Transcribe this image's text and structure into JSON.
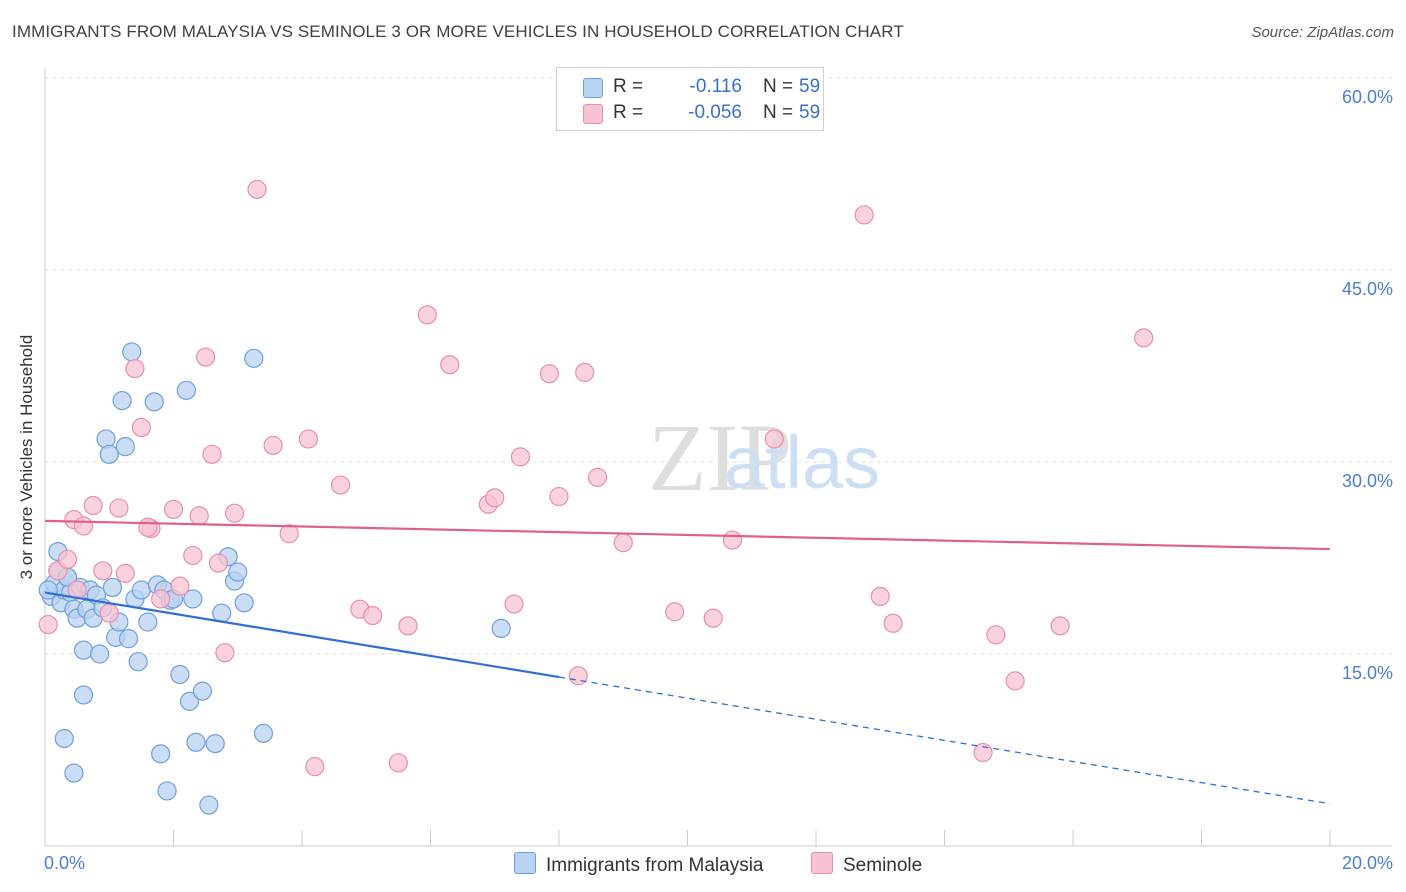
{
  "title": "IMMIGRANTS FROM MALAYSIA VS SEMINOLE 3 OR MORE VEHICLES IN HOUSEHOLD CORRELATION CHART",
  "source": "Source: ZipAtlas.com",
  "watermark": {
    "zip": "ZIP",
    "atlas": "atlas"
  },
  "legend": {
    "rows": [
      {
        "r_label": "R =",
        "r_value": "-0.116",
        "n_label": "N =",
        "n_value": "59"
      },
      {
        "r_label": "R =",
        "r_value": "-0.056",
        "n_label": "N =",
        "n_value": "59"
      }
    ]
  },
  "bottom_legend": {
    "series1": "Immigrants from Malaysia",
    "series2": "Seminole"
  },
  "colors": {
    "blue_fill": "#b8d2f2",
    "blue_stroke": "#6f9fdc",
    "blue_line": "#2f6fd4",
    "pink_fill": "#f7c3d3",
    "pink_stroke": "#e88fab",
    "pink_line": "#e0608a",
    "tick": "#4a7fd4",
    "grid": "#dddddd"
  },
  "chart_data": {
    "type": "scatter",
    "ylabel": "3 or more Vehicles in Household",
    "xlim": [
      0,
      20
    ],
    "ylim": [
      0,
      60
    ],
    "x_tick_labels": [
      "0.0%",
      "20.0%"
    ],
    "y_ticks": [
      15,
      30,
      45,
      60
    ],
    "y_tick_labels": [
      "15.0%",
      "30.0%",
      "45.0%",
      "60.0%"
    ],
    "grid": true,
    "series": [
      {
        "name": "Immigrants from Malaysia",
        "points": [
          [
            0.1,
            19.5
          ],
          [
            0.15,
            20.5
          ],
          [
            0.2,
            21.5
          ],
          [
            0.25,
            19.0
          ],
          [
            0.3,
            20.0
          ],
          [
            0.35,
            21.0
          ],
          [
            0.4,
            19.8
          ],
          [
            0.45,
            18.5
          ],
          [
            0.5,
            17.8
          ],
          [
            0.55,
            20.2
          ],
          [
            0.6,
            15.3
          ],
          [
            0.65,
            18.5
          ],
          [
            0.7,
            20.0
          ],
          [
            0.75,
            17.8
          ],
          [
            0.8,
            19.6
          ],
          [
            0.85,
            15.0
          ],
          [
            0.9,
            18.6
          ],
          [
            0.95,
            31.8
          ],
          [
            1.0,
            30.6
          ],
          [
            1.05,
            20.2
          ],
          [
            1.1,
            16.3
          ],
          [
            1.15,
            17.5
          ],
          [
            1.2,
            34.8
          ],
          [
            1.25,
            31.2
          ],
          [
            1.3,
            16.2
          ],
          [
            1.35,
            38.6
          ],
          [
            1.4,
            19.3
          ],
          [
            1.45,
            14.4
          ],
          [
            1.5,
            20.0
          ],
          [
            1.6,
            17.5
          ],
          [
            1.7,
            34.7
          ],
          [
            1.75,
            20.4
          ],
          [
            1.8,
            7.2
          ],
          [
            1.85,
            20.0
          ],
          [
            1.9,
            4.3
          ],
          [
            1.95,
            19.2
          ],
          [
            2.0,
            19.3
          ],
          [
            2.1,
            13.4
          ],
          [
            2.2,
            35.6
          ],
          [
            2.25,
            11.3
          ],
          [
            2.3,
            19.3
          ],
          [
            2.35,
            8.1
          ],
          [
            2.45,
            12.1
          ],
          [
            2.55,
            3.2
          ],
          [
            2.65,
            8.0
          ],
          [
            2.75,
            18.2
          ],
          [
            2.85,
            22.6
          ],
          [
            2.95,
            20.7
          ],
          [
            3.0,
            21.4
          ],
          [
            3.1,
            19.0
          ],
          [
            3.25,
            38.1
          ],
          [
            3.4,
            8.8
          ],
          [
            0.2,
            23.0
          ],
          [
            0.3,
            8.4
          ],
          [
            0.45,
            5.7
          ],
          [
            0.6,
            11.8
          ],
          [
            7.1,
            17.0
          ],
          [
            0.05,
            20.0
          ],
          [
            0.35,
            21.0
          ]
        ]
      },
      {
        "name": "Seminole",
        "points": [
          [
            0.05,
            17.3
          ],
          [
            0.2,
            21.5
          ],
          [
            0.35,
            22.4
          ],
          [
            0.45,
            25.5
          ],
          [
            0.6,
            25.0
          ],
          [
            0.75,
            26.6
          ],
          [
            0.9,
            21.5
          ],
          [
            1.0,
            18.2
          ],
          [
            1.15,
            26.4
          ],
          [
            1.25,
            21.3
          ],
          [
            1.4,
            37.3
          ],
          [
            1.5,
            32.7
          ],
          [
            1.65,
            24.8
          ],
          [
            1.8,
            19.3
          ],
          [
            2.0,
            26.3
          ],
          [
            2.1,
            20.3
          ],
          [
            2.3,
            22.7
          ],
          [
            2.4,
            25.8
          ],
          [
            2.5,
            38.2
          ],
          [
            2.6,
            30.6
          ],
          [
            2.7,
            22.1
          ],
          [
            2.8,
            15.1
          ],
          [
            2.95,
            26.0
          ],
          [
            3.3,
            51.3
          ],
          [
            3.55,
            31.3
          ],
          [
            3.8,
            24.4
          ],
          [
            4.1,
            31.8
          ],
          [
            4.2,
            6.2
          ],
          [
            4.6,
            28.2
          ],
          [
            4.9,
            18.5
          ],
          [
            5.1,
            18.0
          ],
          [
            5.5,
            6.5
          ],
          [
            5.65,
            17.2
          ],
          [
            5.95,
            41.5
          ],
          [
            6.3,
            37.6
          ],
          [
            6.9,
            26.7
          ],
          [
            7.0,
            27.2
          ],
          [
            7.3,
            18.9
          ],
          [
            7.4,
            30.4
          ],
          [
            7.85,
            36.9
          ],
          [
            8.0,
            27.3
          ],
          [
            8.3,
            13.3
          ],
          [
            8.4,
            37.0
          ],
          [
            8.6,
            28.8
          ],
          [
            9.0,
            23.7
          ],
          [
            9.8,
            18.3
          ],
          [
            10.4,
            17.8
          ],
          [
            10.7,
            23.9
          ],
          [
            11.35,
            31.8
          ],
          [
            12.75,
            49.3
          ],
          [
            13.0,
            19.5
          ],
          [
            13.2,
            17.4
          ],
          [
            14.6,
            7.3
          ],
          [
            14.8,
            16.5
          ],
          [
            15.1,
            12.9
          ],
          [
            15.8,
            17.2
          ],
          [
            17.1,
            39.7
          ],
          [
            1.6,
            24.9
          ],
          [
            0.5,
            20.0
          ]
        ]
      }
    ],
    "trend_lines": [
      {
        "series": "Immigrants from Malaysia",
        "x": [
          0,
          8,
          20
        ],
        "y": [
          19.8,
          13.2,
          3.3
        ],
        "dashed_from_x": 8
      },
      {
        "series": "Seminole",
        "x": [
          0,
          20
        ],
        "y": [
          25.4,
          23.2
        ]
      }
    ]
  }
}
